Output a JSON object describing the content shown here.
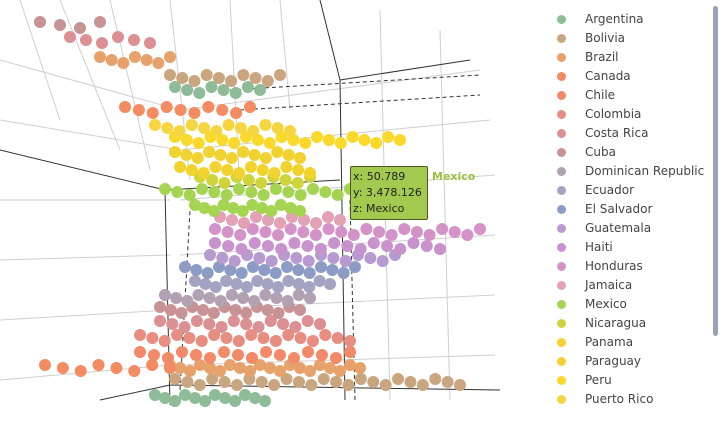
{
  "chart_data": {
    "type": "scatter",
    "dimensions": 3,
    "x_range": [
      0,
      100
    ],
    "y_range": [
      0,
      10000
    ],
    "z_categories": [
      "Argentina",
      "Bolivia",
      "Brazil",
      "Canada",
      "Chile",
      "Colombia",
      "Costa Rica",
      "Cuba",
      "Dominican Republic",
      "Ecuador",
      "El Salvador",
      "Guatemala",
      "Haiti",
      "Honduras",
      "Jamaica",
      "Mexico",
      "Nicaragua",
      "Panama",
      "Paraguay",
      "Peru",
      "Puerto Rico"
    ],
    "series": [
      {
        "name": "Argentina",
        "color": "#8fbc98"
      },
      {
        "name": "Bolivia",
        "color": "#c9a67f"
      },
      {
        "name": "Brazil",
        "color": "#e7a26b"
      },
      {
        "name": "Canada",
        "color": "#f38b63"
      },
      {
        "name": "Chile",
        "color": "#f28a6a"
      },
      {
        "name": "Colombia",
        "color": "#e88d82"
      },
      {
        "name": "Costa Rica",
        "color": "#dc9093"
      },
      {
        "name": "Cuba",
        "color": "#c79394"
      },
      {
        "name": "Dominican Republic",
        "color": "#b1a1b3"
      },
      {
        "name": "Ecuador",
        "color": "#a4a3c1"
      },
      {
        "name": "El Salvador",
        "color": "#8c9cc5"
      },
      {
        "name": "Guatemala",
        "color": "#b69ad0"
      },
      {
        "name": "Haiti",
        "color": "#c892cd"
      },
      {
        "name": "Honduras",
        "color": "#d493c8"
      },
      {
        "name": "Jamaica",
        "color": "#e3a1b6"
      },
      {
        "name": "Mexico",
        "color": "#a5d452"
      },
      {
        "name": "Nicaragua",
        "color": "#cfd43a"
      },
      {
        "name": "Panama",
        "color": "#f2d22c"
      },
      {
        "name": "Paraguay",
        "color": "#f0d230"
      },
      {
        "name": "Peru",
        "color": "#fad92a"
      },
      {
        "name": "Puerto Rico",
        "color": "#f6d640"
      }
    ],
    "tooltip": {
      "x": "x: 50.789",
      "y": "y: 3,478.126",
      "z": "z: Mexico",
      "series": "Mexico"
    }
  }
}
